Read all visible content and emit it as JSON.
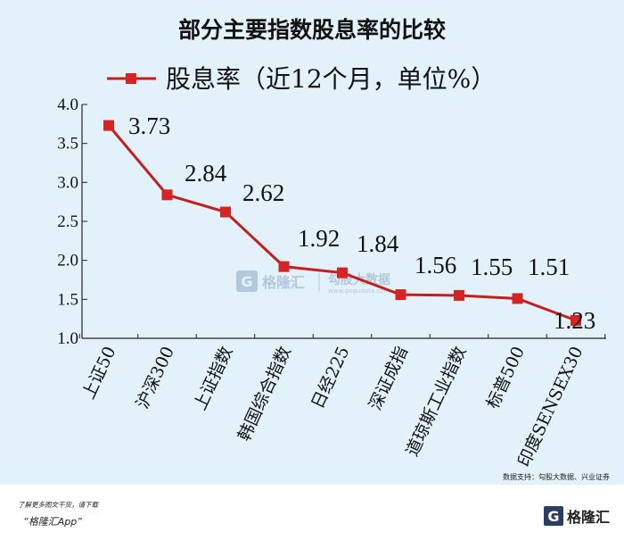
{
  "chart_data": {
    "type": "line",
    "title": "部分主要指数股息率的比较",
    "categories": [
      "上证50",
      "沪深300",
      "上证指数",
      "韩国综合指数",
      "日经225",
      "深证成指",
      "道琼斯工业指数",
      "标普500",
      "印度SENSEX30"
    ],
    "series": [
      {
        "name": "股息率（近12个月，单位%）",
        "values": [
          3.73,
          2.84,
          2.62,
          1.92,
          1.84,
          1.56,
          1.55,
          1.51,
          1.23
        ]
      }
    ],
    "data_labels": [
      "3.73",
      "2.84",
      "2.62",
      "1.92",
      "1.84",
      "1.56",
      "1.55",
      "1.51",
      "1.23"
    ],
    "y_ticks": [
      "4.0",
      "3.5",
      "3.0",
      "2.5",
      "2.0",
      "1.5",
      "1.0"
    ],
    "ylim": [
      1.0,
      4.0
    ],
    "grid": false,
    "legend_position": "top",
    "line_color": "#c41f1f"
  },
  "source": "数据支持：勾股大数据、兴业证券",
  "watermark": {
    "brand": "格隆汇",
    "brand2": "勾股大数据",
    "url": "www.gogudata.com"
  },
  "footer": {
    "line1": "了解更多图文干货，请下载",
    "line2": "“格隆汇App”",
    "logo_mark": "G",
    "logo_text": "格隆汇"
  }
}
